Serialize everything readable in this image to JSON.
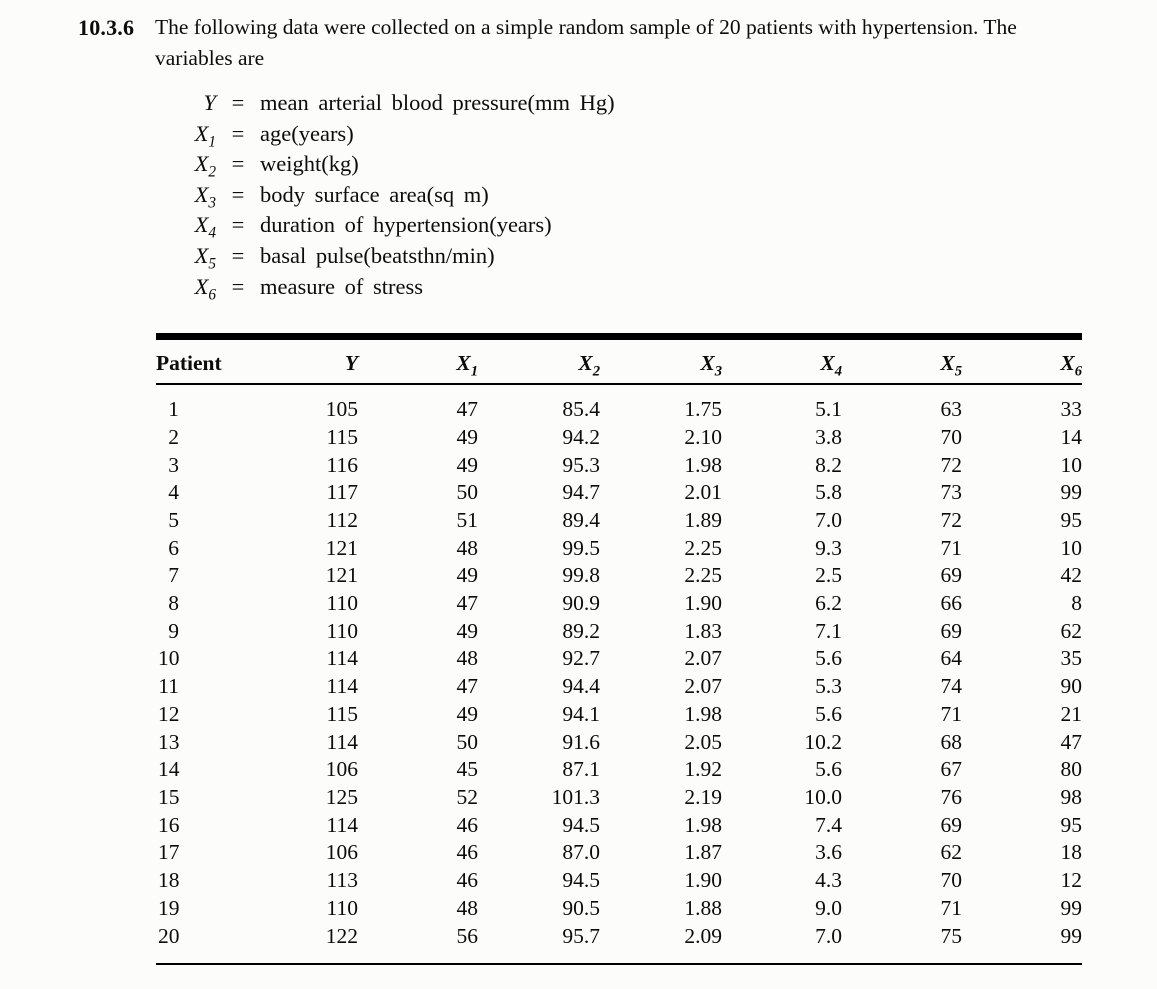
{
  "problem": {
    "number": "10.3.6",
    "line1": "The following data were collected on a simple random sample of 20 patients with hypertension. The",
    "line2": "variables are"
  },
  "equals_sign": "=",
  "variables": [
    {
      "base": "Y",
      "sub": "",
      "definition": "mean arterial blood pressure(mm Hg)"
    },
    {
      "base": "X",
      "sub": "1",
      "definition": "age(years)"
    },
    {
      "base": "X",
      "sub": "2",
      "definition": "weight(kg)"
    },
    {
      "base": "X",
      "sub": "3",
      "definition": "body surface area(sq m)"
    },
    {
      "base": "X",
      "sub": "4",
      "definition": "duration of hypertension(years)"
    },
    {
      "base": "X",
      "sub": "5",
      "definition": "basal pulse(beatsthn/min)"
    },
    {
      "base": "X",
      "sub": "6",
      "definition": "measure of stress"
    }
  ],
  "table": {
    "columns": [
      {
        "label": "Patient",
        "base": "",
        "sub": ""
      },
      {
        "label": "",
        "base": "Y",
        "sub": ""
      },
      {
        "label": "",
        "base": "X",
        "sub": "1"
      },
      {
        "label": "",
        "base": "X",
        "sub": "2"
      },
      {
        "label": "",
        "base": "X",
        "sub": "3"
      },
      {
        "label": "",
        "base": "X",
        "sub": "4"
      },
      {
        "label": "",
        "base": "X",
        "sub": "5"
      },
      {
        "label": "",
        "base": "X",
        "sub": "6"
      }
    ],
    "rows": [
      {
        "patient": "1",
        "values": [
          "105",
          "47",
          "85.4",
          "1.75",
          "5.1",
          "63",
          "33"
        ]
      },
      {
        "patient": "2",
        "values": [
          "115",
          "49",
          "94.2",
          "2.10",
          "3.8",
          "70",
          "14"
        ]
      },
      {
        "patient": "3",
        "values": [
          "116",
          "49",
          "95.3",
          "1.98",
          "8.2",
          "72",
          "10"
        ]
      },
      {
        "patient": "4",
        "values": [
          "117",
          "50",
          "94.7",
          "2.01",
          "5.8",
          "73",
          "99"
        ]
      },
      {
        "patient": "5",
        "values": [
          "112",
          "51",
          "89.4",
          "1.89",
          "7.0",
          "72",
          "95"
        ]
      },
      {
        "patient": "6",
        "values": [
          "121",
          "48",
          "99.5",
          "2.25",
          "9.3",
          "71",
          "10"
        ]
      },
      {
        "patient": "7",
        "values": [
          "121",
          "49",
          "99.8",
          "2.25",
          "2.5",
          "69",
          "42"
        ]
      },
      {
        "patient": "8",
        "values": [
          "110",
          "47",
          "90.9",
          "1.90",
          "6.2",
          "66",
          "8"
        ]
      },
      {
        "patient": "9",
        "values": [
          "110",
          "49",
          "89.2",
          "1.83",
          "7.1",
          "69",
          "62"
        ]
      },
      {
        "patient": "10",
        "values": [
          "114",
          "48",
          "92.7",
          "2.07",
          "5.6",
          "64",
          "35"
        ]
      },
      {
        "patient": "11",
        "values": [
          "114",
          "47",
          "94.4",
          "2.07",
          "5.3",
          "74",
          "90"
        ]
      },
      {
        "patient": "12",
        "values": [
          "115",
          "49",
          "94.1",
          "1.98",
          "5.6",
          "71",
          "21"
        ]
      },
      {
        "patient": "13",
        "values": [
          "114",
          "50",
          "91.6",
          "2.05",
          "10.2",
          "68",
          "47"
        ]
      },
      {
        "patient": "14",
        "values": [
          "106",
          "45",
          "87.1",
          "1.92",
          "5.6",
          "67",
          "80"
        ]
      },
      {
        "patient": "15",
        "values": [
          "125",
          "52",
          "101.3",
          "2.19",
          "10.0",
          "76",
          "98"
        ]
      },
      {
        "patient": "16",
        "values": [
          "114",
          "46",
          "94.5",
          "1.98",
          "7.4",
          "69",
          "95"
        ]
      },
      {
        "patient": "17",
        "values": [
          "106",
          "46",
          "87.0",
          "1.87",
          "3.6",
          "62",
          "18"
        ]
      },
      {
        "patient": "18",
        "values": [
          "113",
          "46",
          "94.5",
          "1.90",
          "4.3",
          "70",
          "12"
        ]
      },
      {
        "patient": "19",
        "values": [
          "110",
          "48",
          "90.5",
          "1.88",
          "9.0",
          "71",
          "99"
        ]
      },
      {
        "patient": "20",
        "values": [
          "122",
          "56",
          "95.7",
          "2.09",
          "7.0",
          "75",
          "99"
        ]
      }
    ]
  }
}
